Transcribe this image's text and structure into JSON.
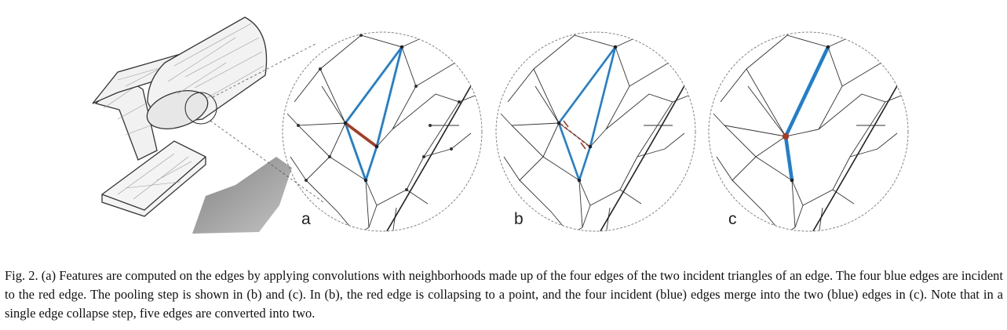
{
  "figure": {
    "panels": [
      {
        "label": "a"
      },
      {
        "label": "b"
      },
      {
        "label": "c"
      }
    ],
    "colors": {
      "blue_edge": "#1f7fcf",
      "red_edge": "#a83a24",
      "mesh_line": "#333333",
      "shadow": "#8f8f8f"
    }
  },
  "caption": {
    "text": "Fig. 2.  (a) Features are computed on the edges by applying convolutions with neighborhoods made up of the four edges of the two incident triangles of an edge. The four blue edges are incident to the red edge. The pooling step is shown in (b) and (c). In (b), the red edge is collapsing to a point, and the four incident (blue) edges merge into the two (blue) edges in (c). Note that in a single edge collapse step, five edges are converted into two."
  }
}
